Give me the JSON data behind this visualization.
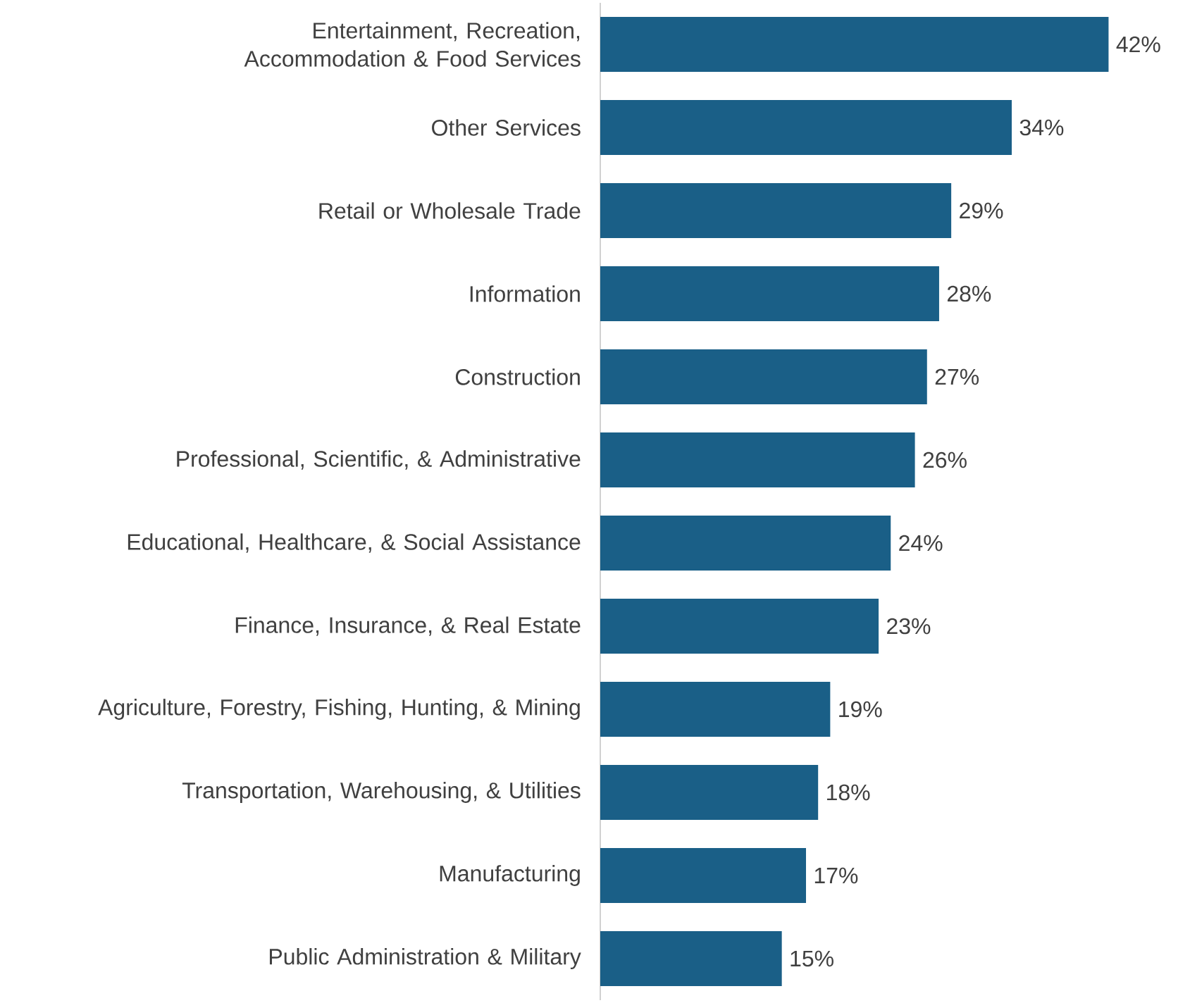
{
  "chart_data": {
    "type": "bar",
    "orientation": "horizontal",
    "categories": [
      "Entertainment, Recreation, Accommodation & Food Services",
      "Other Services",
      "Retail or Wholesale Trade",
      "Information",
      "Construction",
      "Professional, Scientific, & Administrative",
      "Educational, Healthcare, & Social Assistance",
      "Finance, Insurance, & Real Estate",
      "Agriculture, Forestry, Fishing, Hunting, & Mining",
      "Transportation, Warehousing, & Utilities",
      "Manufacturing",
      "Public Administration & Military"
    ],
    "values": [
      42,
      34,
      29,
      28,
      27,
      26,
      24,
      23,
      19,
      18,
      17,
      15
    ],
    "value_labels": [
      "42%",
      "34%",
      "29%",
      "28%",
      "27%",
      "26%",
      "24%",
      "23%",
      "19%",
      "18%",
      "17%",
      "15%"
    ],
    "color": "#1a5f87"
  }
}
